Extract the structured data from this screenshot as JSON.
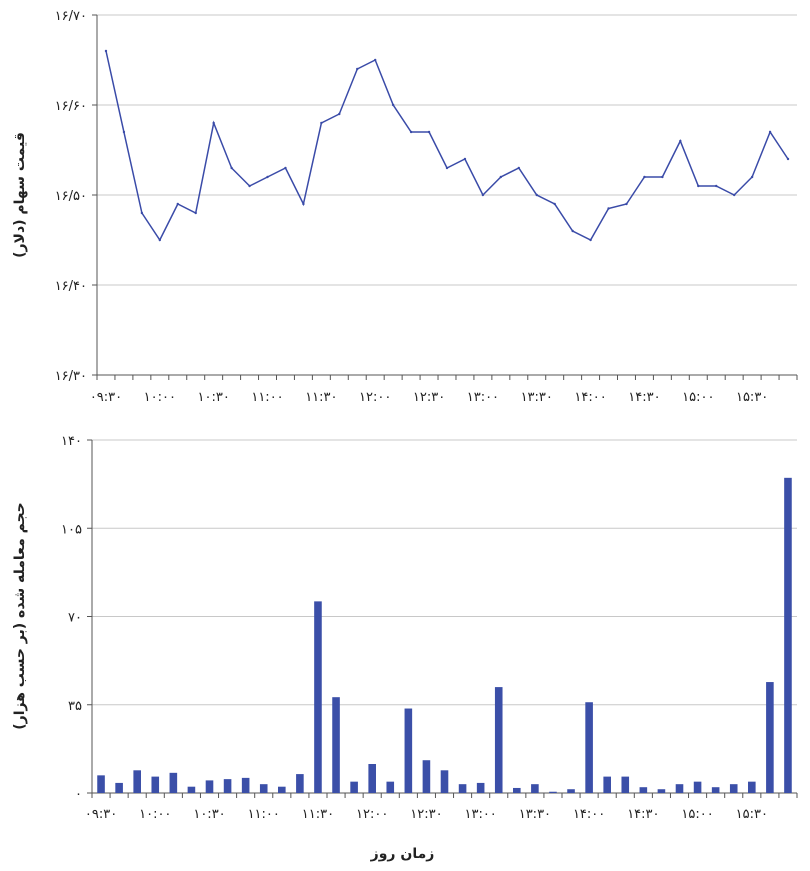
{
  "chart_data": [
    {
      "type": "line",
      "ylabel": "قیمت سهام (دلار)",
      "ylim": [
        16.3,
        16.7
      ],
      "y_ticks": [
        "۱۶/۳۰",
        "۱۶/۴۰",
        "۱۶/۵۰",
        "۱۶/۶۰",
        "۱۶/۷۰"
      ],
      "x_ticks": [
        "۰۹:۳۰",
        "۱۰:۰۰",
        "۱۰:۳۰",
        "۱۱:۰۰",
        "۱۱:۳۰",
        "۱۲:۰۰",
        "۱۲:۳۰",
        "۱۳:۰۰",
        "۱۳:۳۰",
        "۱۴:۰۰",
        "۱۴:۳۰",
        "۱۵:۰۰",
        "۱۵:۳۰"
      ],
      "grid": "horizontal",
      "color": "#3a4ba8",
      "values": [
        16.66,
        16.57,
        16.48,
        16.45,
        16.49,
        16.48,
        16.58,
        16.53,
        16.51,
        16.52,
        16.53,
        16.49,
        16.58,
        16.59,
        16.64,
        16.65,
        16.6,
        16.57,
        16.57,
        16.53,
        16.54,
        16.5,
        16.52,
        16.53,
        16.5,
        16.49,
        16.46,
        16.45,
        16.485,
        16.49,
        16.52,
        16.52,
        16.56,
        16.51,
        16.51,
        16.5,
        16.52,
        16.57,
        16.54
      ]
    },
    {
      "type": "bar",
      "ylabel": "حجم معامله شده (بر حسب هزار)",
      "xlabel": "زمان روز",
      "ylim": [
        0,
        140
      ],
      "y_ticks": [
        "۰",
        "۳۵",
        "۷۰",
        "۱۰۵",
        "۱۴۰"
      ],
      "x_ticks": [
        "۰۹:۳۰",
        "۱۰:۰۰",
        "۱۰:۳۰",
        "۱۱:۰۰",
        "۱۱:۳۰",
        "۱۲:۰۰",
        "۱۲:۳۰",
        "۱۳:۰۰",
        "۱۳:۳۰",
        "۱۴:۰۰",
        "۱۴:۳۰",
        "۱۵:۰۰",
        "۱۵:۳۰"
      ],
      "grid": "horizontal",
      "color": "#3b4fa8",
      "values": [
        7,
        4,
        9,
        6.5,
        8,
        2.5,
        5,
        5.5,
        6,
        3.5,
        2.5,
        7.5,
        76,
        38,
        4.5,
        11.5,
        4.5,
        33.5,
        13,
        9,
        3.5,
        4,
        42,
        2,
        3.5,
        0.5,
        1.5,
        36,
        6.5,
        6.5,
        2.3,
        1.5,
        3.5,
        4.5,
        2.3,
        3.5,
        4.5,
        44,
        125
      ]
    }
  ]
}
